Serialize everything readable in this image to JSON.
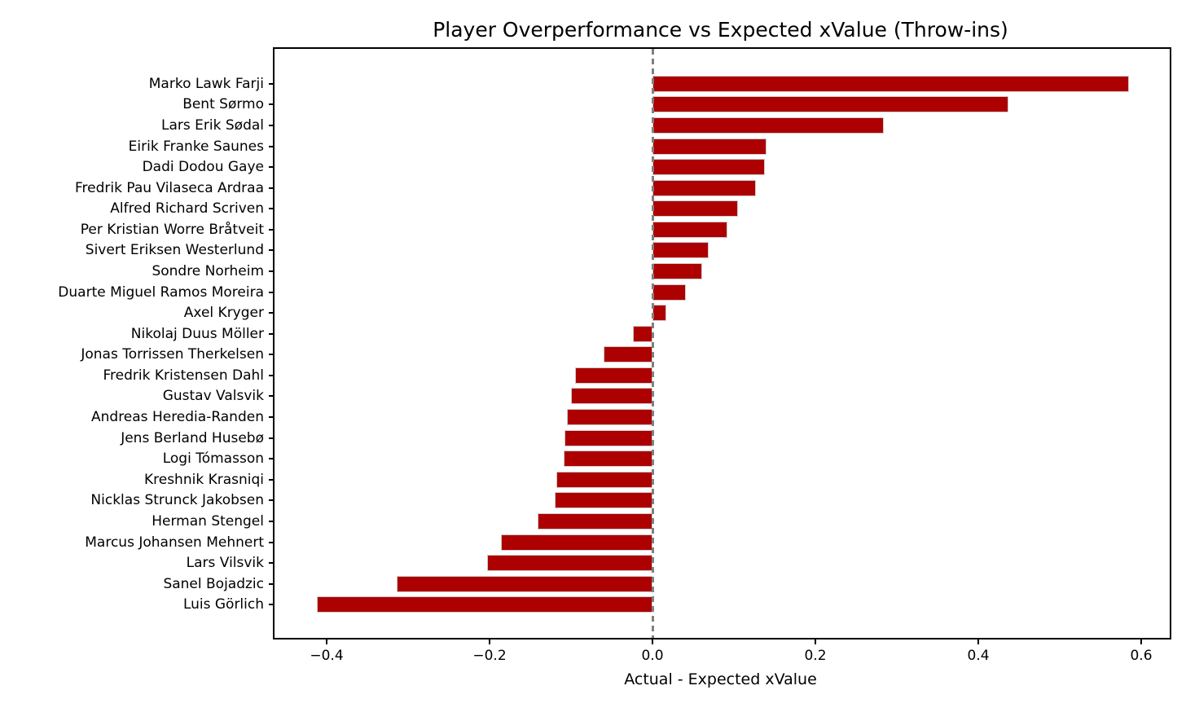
{
  "chart_data": {
    "type": "bar",
    "orientation": "horizontal",
    "title": "Player Overperformance vs Expected xValue (Throw-ins)",
    "xlabel": "Actual - Expected xValue",
    "ylabel": "",
    "grid": false,
    "legend": null,
    "categories": [
      "Marko Lawk Farji",
      "Bent Sørmo",
      "Lars Erik Sødal",
      "Eirik Franke Saunes",
      "Dadi Dodou Gaye",
      "Fredrik Pau Vilaseca Ardraa",
      "Alfred Richard Scriven",
      "Per Kristian Worre Bråtveit",
      "Sivert Eriksen Westerlund",
      "Sondre Norheim",
      "Duarte Miguel Ramos Moreira",
      "Axel Kryger",
      "Nikolaj Duus Möller",
      "Jonas Torrissen Therkelsen",
      "Fredrik Kristensen Dahl",
      "Gustav Valsvik",
      "Andreas Heredia-Randen",
      "Jens Berland Husebø",
      "Logi Tómasson",
      "Kreshnik Krasniqi",
      "Nicklas Strunck Jakobsen",
      "Herman Stengel",
      "Marcus Johansen Mehnert",
      "Lars Vilsvik",
      "Sanel Bojadzic",
      "Luis Görlich"
    ],
    "values": [
      0.585,
      0.437,
      0.284,
      0.14,
      0.138,
      0.127,
      0.105,
      0.092,
      0.069,
      0.061,
      0.041,
      0.017,
      -0.024,
      -0.06,
      -0.095,
      -0.1,
      -0.105,
      -0.108,
      -0.109,
      -0.118,
      -0.12,
      -0.141,
      -0.186,
      -0.203,
      -0.314,
      -0.412
    ],
    "xlim": [
      -0.464,
      0.635
    ],
    "xticks": [
      -0.4,
      -0.2,
      0.0,
      0.2,
      0.4,
      0.6
    ],
    "bar_color": "#AD0000",
    "bar_edge_color": "#d2cccc",
    "zero_line": {
      "x": 0.0,
      "style": "dashed",
      "color": "#808080"
    }
  }
}
